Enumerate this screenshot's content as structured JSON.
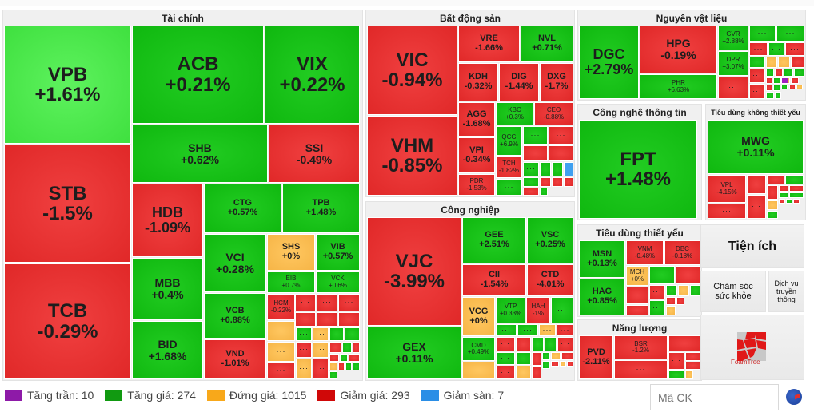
{
  "groups": {
    "tai_chinh": {
      "title": "Tài chính"
    },
    "bat_dong_san": {
      "title": "Bất động sản"
    },
    "nguyen_vat_lieu": {
      "title": "Nguyên vật liệu"
    },
    "cong_nghiep": {
      "title": "Công nghiệp"
    },
    "cong_nghe": {
      "title": "Công nghệ thông tin"
    },
    "tieu_dung_ktg": {
      "title": "Tiêu dùng không thiết yếu"
    },
    "tieu_dung_ty": {
      "title": "Tiêu dùng thiết yếu"
    },
    "nang_luong": {
      "title": "Năng lượng"
    },
    "tien_ich": {
      "title": "Tiện ích"
    },
    "cham_soc": {
      "title": "Chăm sóc sức khỏe"
    },
    "dich_vu": {
      "title": "Dịch vụ truyền thông"
    }
  },
  "tiles": {
    "VPB": {
      "sym": "VPB",
      "pct": "+1.61%"
    },
    "ACB": {
      "sym": "ACB",
      "pct": "+0.21%"
    },
    "VIX": {
      "sym": "VIX",
      "pct": "+0.22%"
    },
    "SHB": {
      "sym": "SHB",
      "pct": "+0.62%"
    },
    "SSI": {
      "sym": "SSI",
      "pct": "-0.49%"
    },
    "STB": {
      "sym": "STB",
      "pct": "-1.5%"
    },
    "TCB": {
      "sym": "TCB",
      "pct": "-0.29%"
    },
    "HDB": {
      "sym": "HDB",
      "pct": "-1.09%"
    },
    "MBB": {
      "sym": "MBB",
      "pct": "+0.4%"
    },
    "BID": {
      "sym": "BID",
      "pct": "+1.68%"
    },
    "CTG": {
      "sym": "CTG",
      "pct": "+0.57%"
    },
    "TPB": {
      "sym": "TPB",
      "pct": "+1.48%"
    },
    "VCI": {
      "sym": "VCI",
      "pct": "+0.28%"
    },
    "VCB": {
      "sym": "VCB",
      "pct": "+0.88%"
    },
    "VND": {
      "sym": "VND",
      "pct": "-1.01%"
    },
    "SHS": {
      "sym": "SHS",
      "pct": "+0%"
    },
    "VIB": {
      "sym": "VIB",
      "pct": "+0.57%"
    },
    "EIB": {
      "sym": "EIB",
      "pct": "+0.7%"
    },
    "VCK": {
      "sym": "VCK",
      "pct": "+0.6%"
    },
    "HCM": {
      "sym": "HCM",
      "pct": "-0.22%"
    },
    "VIC": {
      "sym": "VIC",
      "pct": "-0.94%"
    },
    "VHM": {
      "sym": "VHM",
      "pct": "-0.85%"
    },
    "VRE": {
      "sym": "VRE",
      "pct": "-1.66%"
    },
    "NVL": {
      "sym": "NVL",
      "pct": "+0.71%"
    },
    "KDH": {
      "sym": "KDH",
      "pct": "-0.32%"
    },
    "DIG": {
      "sym": "DIG",
      "pct": "-1.44%"
    },
    "DXG": {
      "sym": "DXG",
      "pct": "-1.7%"
    },
    "AGG": {
      "sym": "AGG",
      "pct": "-1.68%"
    },
    "KBC": {
      "sym": "KBC",
      "pct": "+0.3%"
    },
    "CEO": {
      "sym": "CEO",
      "pct": "-0.88%"
    },
    "QCG": {
      "sym": "QCG",
      "pct": "+6.9%"
    },
    "VPI": {
      "sym": "VPI",
      "pct": "-0.34%"
    },
    "TCH": {
      "sym": "TCH",
      "pct": "-1.82%"
    },
    "PDR": {
      "sym": "PDR",
      "pct": "-1.53%"
    },
    "VJC": {
      "sym": "VJC",
      "pct": "-3.99%"
    },
    "GEX": {
      "sym": "GEX",
      "pct": "+0.11%"
    },
    "GEE": {
      "sym": "GEE",
      "pct": "+2.51%"
    },
    "VSC": {
      "sym": "VSC",
      "pct": "+0.25%"
    },
    "CII": {
      "sym": "CII",
      "pct": "-1.54%"
    },
    "CTD": {
      "sym": "CTD",
      "pct": "-4.01%"
    },
    "VCG": {
      "sym": "VCG",
      "pct": "+0%"
    },
    "VTP": {
      "sym": "VTP",
      "pct": "+0.33%"
    },
    "HAH": {
      "sym": "HAH",
      "pct": "-1%"
    },
    "CMD": {
      "sym": "CMD",
      "pct": "+0.49%"
    },
    "DGC": {
      "sym": "DGC",
      "pct": "+2.79%"
    },
    "HPG": {
      "sym": "HPG",
      "pct": "-0.19%"
    },
    "PHR": {
      "sym": "PHR",
      "pct": "+6.63%"
    },
    "GVR": {
      "sym": "GVR",
      "pct": "+2.88%"
    },
    "DPR": {
      "sym": "DPR",
      "pct": "+3.07%"
    },
    "FPT": {
      "sym": "FPT",
      "pct": "+1.48%"
    },
    "MWG": {
      "sym": "MWG",
      "pct": "+0.11%"
    },
    "VPL": {
      "sym": "VPL",
      "pct": "-4.15%"
    },
    "MSN": {
      "sym": "MSN",
      "pct": "+0.13%"
    },
    "HAG": {
      "sym": "HAG",
      "pct": "+0.85%"
    },
    "VNM": {
      "sym": "VNM",
      "pct": "-0.48%"
    },
    "DBC": {
      "sym": "DBC",
      "pct": "-0.18%"
    },
    "MCH": {
      "sym": "MCH",
      "pct": "+0%"
    },
    "PVD": {
      "sym": "PVD",
      "pct": "-2.11%"
    },
    "BSR": {
      "sym": "BSR",
      "pct": "-1.2%"
    }
  },
  "more_label": "···",
  "legend": [
    {
      "label": "Tăng trần: 10",
      "color": "#8e1aa8"
    },
    {
      "label": "Tăng giá: 274",
      "color": "#119a11"
    },
    {
      "label": "Đứng giá: 1015",
      "color": "#f8a81a"
    },
    {
      "label": "Giảm giá: 293",
      "color": "#d00808"
    },
    {
      "label": "Giảm sàn: 7",
      "color": "#2a8ee6"
    }
  ],
  "search": {
    "placeholder": "Mã CK"
  },
  "branding": {
    "foamtree_label": "FoamTree"
  },
  "colors": {
    "up": "#11bb11",
    "up_strong": "#44e244",
    "down": "#e62e2e",
    "unchanged": "#f8b84c",
    "floor": "#3fa0f0",
    "ceiling": "#a020c0"
  }
}
